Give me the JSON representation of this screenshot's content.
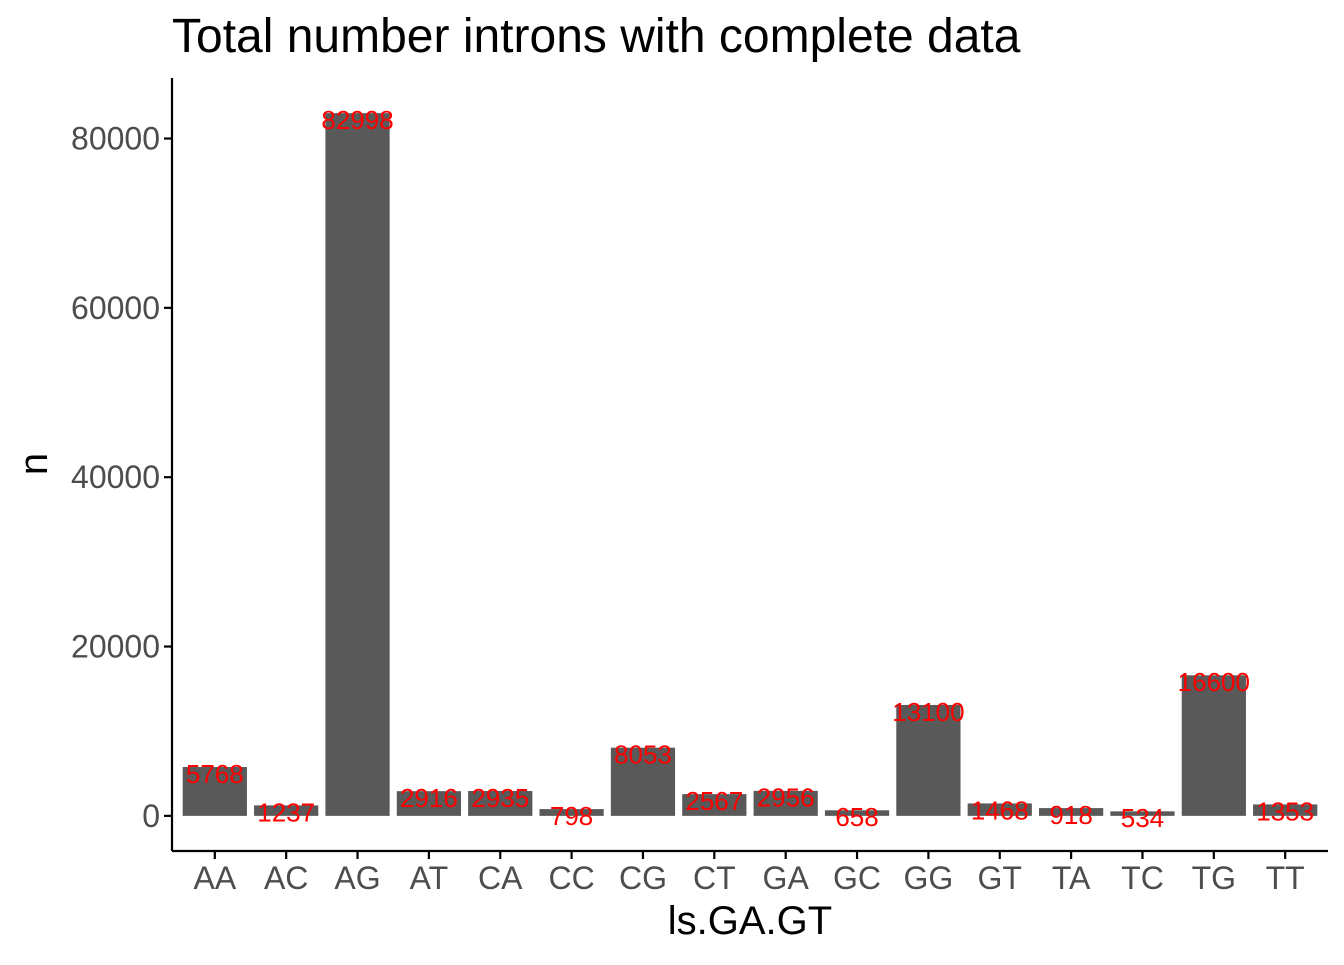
{
  "chart_data": {
    "type": "bar",
    "title": "Total number introns with complete data",
    "xlabel": "ls.GA.GT",
    "ylabel": "n",
    "categories": [
      "AA",
      "AC",
      "AG",
      "AT",
      "CA",
      "CC",
      "CG",
      "CT",
      "GA",
      "GC",
      "GG",
      "GT",
      "TA",
      "TC",
      "TG",
      "TT"
    ],
    "values": [
      5768,
      1237,
      82998,
      2916,
      2935,
      798,
      8053,
      2567,
      2956,
      658,
      13100,
      1468,
      918,
      534,
      16600,
      1353
    ],
    "data_labels": [
      "5768",
      "1237",
      "82998",
      "2916",
      "2935",
      "798",
      "8053",
      "2567",
      "2956",
      "658",
      "13100",
      "1468",
      "918",
      "534",
      "16600",
      "1353"
    ],
    "yticks": [
      0,
      20000,
      40000,
      60000,
      80000
    ],
    "ytick_labels": [
      "0",
      "20000",
      "40000",
      "60000",
      "80000"
    ],
    "ylim": [
      -4150,
      87148
    ],
    "grid": false,
    "legend": "none",
    "colors": {
      "bar": "#595959",
      "data_label": "#ff0000",
      "axis": "#000000",
      "tick_text": "#4d4d4d"
    }
  }
}
